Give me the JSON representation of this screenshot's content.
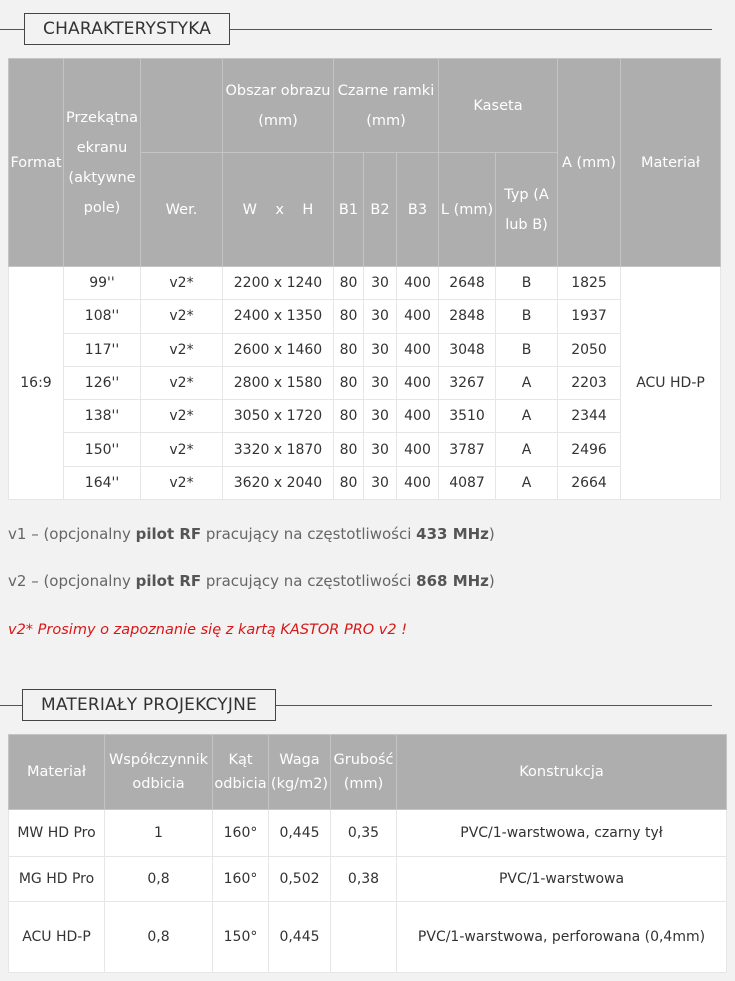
{
  "section1": {
    "title": "CHARAKTERYSTYKA"
  },
  "table1": {
    "headers": {
      "format": "Format",
      "diagonal": "Przekątna ekranu (aktywne pole)",
      "image_area": "Obszar obrazu (mm)",
      "black_frames": "Czarne ramki (mm)",
      "cassette": "Kaseta",
      "a_mm": "A (mm)",
      "material": "Materiał",
      "version": "Wer.",
      "wxh": "W    x    H",
      "b1": "B1",
      "b2": "B2",
      "b3": "B3",
      "l_mm": "L (mm)",
      "type": "Typ (A lub B)"
    },
    "format": "16:9",
    "material": "ACU HD-P",
    "rows": [
      [
        "99''",
        "v2*",
        "2200 x 1240",
        "80",
        "30",
        "400",
        "2648",
        "B",
        "1825"
      ],
      [
        "108''",
        "v2*",
        "2400 x 1350",
        "80",
        "30",
        "400",
        "2848",
        "B",
        "1937"
      ],
      [
        "117''",
        "v2*",
        "2600 x 1460",
        "80",
        "30",
        "400",
        "3048",
        "B",
        "2050"
      ],
      [
        "126''",
        "v2*",
        "2800 x 1580",
        "80",
        "30",
        "400",
        "3267",
        "A",
        "2203"
      ],
      [
        "138''",
        "v2*",
        "3050 x 1720",
        "80",
        "30",
        "400",
        "3510",
        "A",
        "2344"
      ],
      [
        "150''",
        "v2*",
        "3320 x 1870",
        "80",
        "30",
        "400",
        "3787",
        "A",
        "2496"
      ],
      [
        "164''",
        "v2*",
        "3620 x 2040",
        "80",
        "30",
        "400",
        "4087",
        "A",
        "2664"
      ]
    ]
  },
  "notes": {
    "v1": {
      "a": "v1 – (opcjonalny ",
      "b": "pilot RF",
      "c": " pracujący na częstotliwości ",
      "d": "433 MHz",
      "e": ")"
    },
    "v2": {
      "a": "v2 – (opcjonalny ",
      "b": "pilot RF",
      "c": " pracujący na częstotliwości ",
      "d": "868 MHz",
      "e": ")"
    },
    "warning": "v2* Prosimy o zapoznanie się z kartą KASTOR PRO v2 !"
  },
  "section2": {
    "title": "MATERIAŁY PROJEKCYJNE"
  },
  "table2": {
    "headers": [
      "Materiał",
      "Współczynnik odbicia",
      "Kąt odbicia",
      "Waga (kg/m2)",
      "Grubość (mm)",
      "Konstrukcja"
    ],
    "rows": [
      [
        "MW HD Pro",
        "1",
        "160°",
        "0,445",
        "0,35",
        "PVC/1-warstwowa, czarny tył"
      ],
      [
        "MG HD Pro",
        "0,8",
        "160°",
        "0,502",
        "0,38",
        "PVC/1-warstwowa"
      ],
      [
        "ACU HD-P",
        "0,8",
        "150°",
        "0,445",
        "",
        "PVC/1-warstwowa, perforowana (0,4mm)"
      ]
    ]
  },
  "colors": {
    "header_bg": "#aeaeae",
    "warning": "#d81818"
  }
}
